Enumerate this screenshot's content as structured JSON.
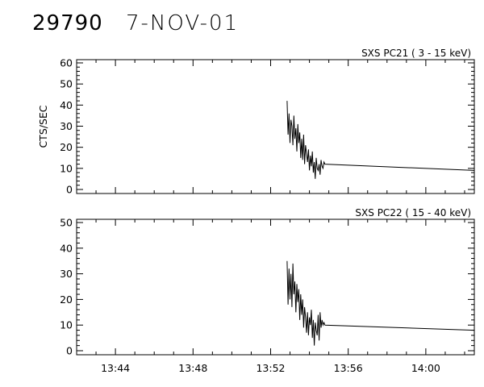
{
  "header": {
    "id": "29790",
    "date": "7-NOV-01"
  },
  "chart_data": [
    {
      "type": "line",
      "title": "SXS PC21  (  3 - 15 keV)",
      "ylabel": "CTS/SEC",
      "xlabel": "",
      "ylim": [
        0,
        60
      ],
      "yticks": [
        0,
        10,
        20,
        30,
        40,
        50,
        60
      ],
      "xlim_min": [
        13.7,
        14.05
      ],
      "x_unit": "minutes after 13:00",
      "grid": false,
      "series": [
        {
          "name": "",
          "x": [
            52.85,
            52.9,
            52.95,
            53.0,
            53.05,
            53.1,
            53.15,
            53.2,
            53.25,
            53.3,
            53.35,
            53.4,
            53.45,
            53.5,
            53.55,
            53.6,
            53.65,
            53.7,
            53.75,
            53.8,
            53.85,
            53.9,
            53.95,
            54.0,
            54.05,
            54.1,
            54.15,
            54.2,
            54.25,
            54.3,
            54.35,
            54.4,
            54.45,
            54.5,
            54.55,
            54.6,
            54.65,
            54.7,
            54.75,
            54.8,
            62.5
          ],
          "values": [
            42,
            26,
            36,
            22,
            33,
            30,
            21,
            35,
            24,
            29,
            18,
            31,
            22,
            27,
            15,
            24,
            14,
            26,
            12,
            21,
            17,
            13,
            19,
            9,
            16,
            11,
            18,
            8,
            13,
            5,
            15,
            10,
            9,
            12,
            7,
            14,
            11,
            10,
            13,
            12,
            9
          ]
        }
      ]
    },
    {
      "type": "line",
      "title": "SXS PC22  ( 15 - 40 keV)",
      "ylabel": "",
      "xlabel": "",
      "ylim": [
        0,
        50
      ],
      "yticks": [
        0,
        10,
        20,
        30,
        40,
        50
      ],
      "x_unit": "minutes after 13:00",
      "grid": false,
      "xticks": [
        "13:44",
        "13:48",
        "13:52",
        "13:56",
        "14:00"
      ],
      "xtick_values": [
        44,
        48,
        52,
        56,
        60
      ],
      "series": [
        {
          "name": "",
          "x": [
            52.85,
            52.9,
            52.95,
            53.0,
            53.05,
            53.1,
            53.15,
            53.2,
            53.25,
            53.3,
            53.35,
            53.4,
            53.45,
            53.5,
            53.55,
            53.6,
            53.65,
            53.7,
            53.75,
            53.8,
            53.85,
            53.9,
            53.95,
            54.0,
            54.05,
            54.1,
            54.15,
            54.2,
            54.25,
            54.3,
            54.35,
            54.4,
            54.45,
            54.5,
            54.55,
            54.6,
            54.65,
            54.7,
            54.75,
            54.8,
            62.5
          ],
          "values": [
            35,
            18,
            32,
            20,
            30,
            17,
            34,
            22,
            27,
            15,
            26,
            19,
            24,
            12,
            22,
            14,
            20,
            9,
            17,
            13,
            7,
            15,
            6,
            13,
            10,
            16,
            5,
            12,
            2,
            11,
            8,
            6,
            14,
            4,
            15,
            9,
            12,
            10,
            11,
            10,
            8
          ]
        }
      ]
    }
  ]
}
